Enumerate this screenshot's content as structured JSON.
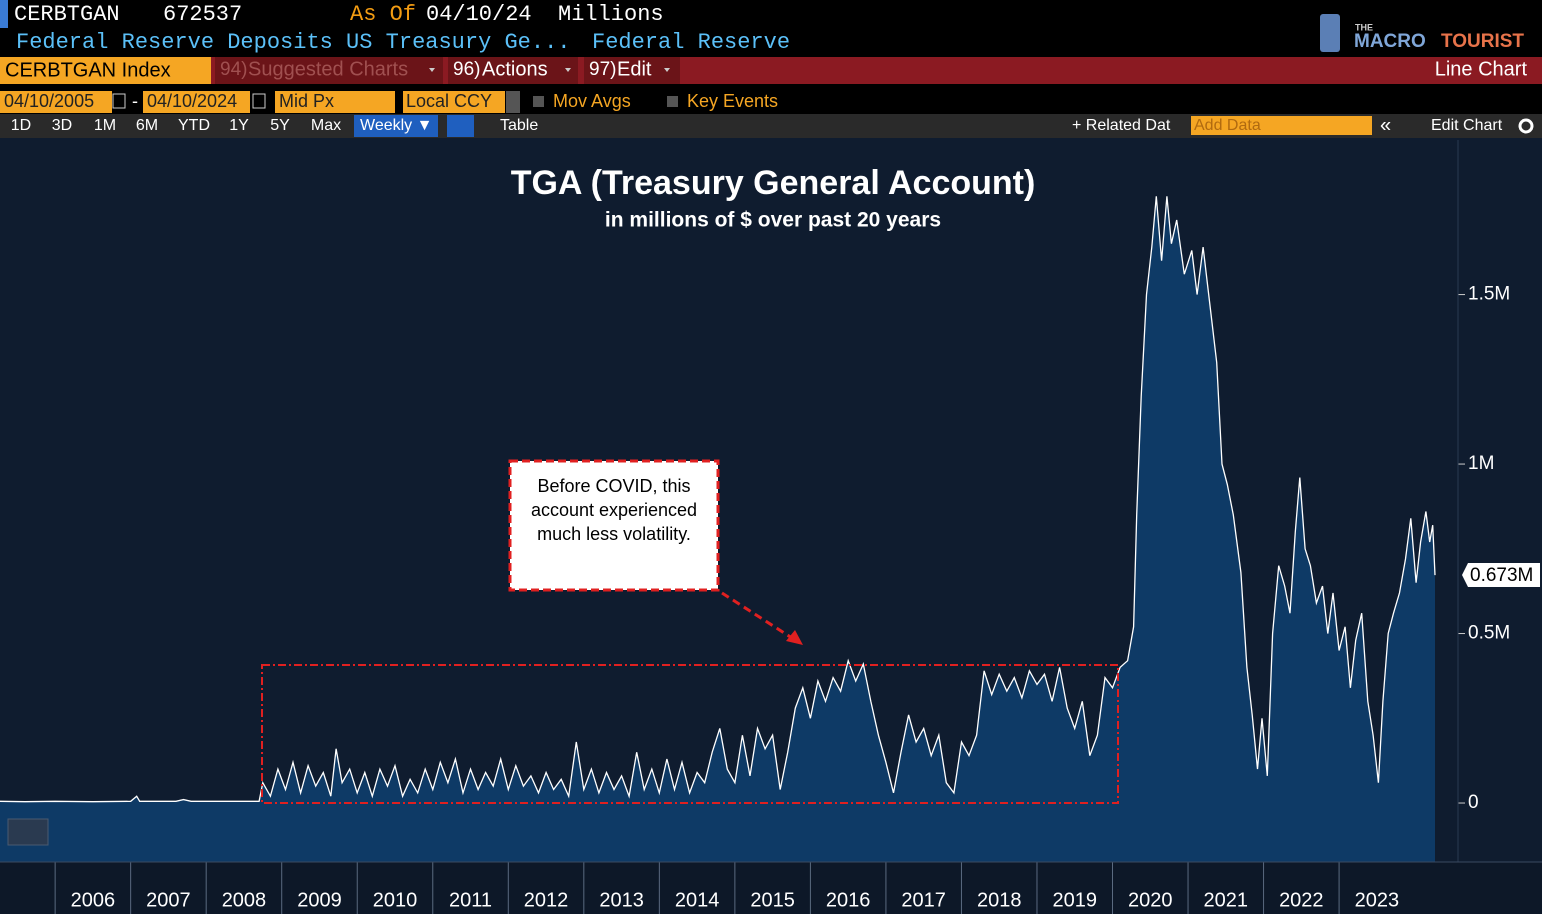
{
  "header": {
    "ticker": "CERBTGAN",
    "value": 672537,
    "as_of_label": "As Of",
    "as_of_date": "04/10/24",
    "units": "Millions",
    "description": "Federal Reserve Deposits US Treasury Ge...",
    "source": "Federal Reserve"
  },
  "logo": {
    "small": "THE",
    "brand1": "MACRO",
    "brand2": "TOURIST"
  },
  "toolbar": {
    "security": "CERBTGAN Index",
    "menu": [
      {
        "num": "94)",
        "label": "Suggested Charts"
      },
      {
        "num": "96)",
        "label": "Actions"
      },
      {
        "num": "97)",
        "label": "Edit"
      }
    ],
    "chart_type": "Line Chart"
  },
  "params": {
    "start": "04/10/2005",
    "dash": "-",
    "end": "04/10/2024",
    "field": "Mid Px",
    "currency": "Local CCY",
    "mov_avgs": "Mov Avgs",
    "key_events": "Key Events"
  },
  "periods": [
    "1D",
    "3D",
    "1M",
    "6M",
    "YTD",
    "1Y",
    "5Y",
    "Max"
  ],
  "frequency": "Weekly ▼",
  "table": "Table",
  "related": "+ Related Dat",
  "add_data": "Add Data",
  "back": "«",
  "edit_chart": "Edit Chart",
  "chart_data": {
    "type": "area",
    "title": "TGA (Treasury General Account)",
    "subtitle": "in millions of $ over past 20 years",
    "annotation": "Before COVID, this account experienced much less volatility.",
    "color": "#0e3a66",
    "line_color": "#ffffff",
    "xlim": [
      2005.27,
      2024.27
    ],
    "xticks": [
      2006,
      2007,
      2008,
      2009,
      2010,
      2011,
      2012,
      2013,
      2014,
      2015,
      2016,
      2017,
      2018,
      2019,
      2020,
      2021,
      2022,
      2023
    ],
    "ylim": [
      -174000,
      1956000
    ],
    "yticks": [
      0,
      {
        "value": 500000,
        "label": "0.5M"
      },
      {
        "value": 1000000,
        "label": "1M"
      },
      {
        "value": 1500000,
        "label": "1.5M"
      }
    ],
    "grid": false,
    "last_value": {
      "value": 672537,
      "label": "0.673M"
    },
    "x": [
      2005.27,
      2005.6,
      2006.0,
      2006.5,
      2007.0,
      2007.08,
      2007.12,
      2007.6,
      2007.7,
      2007.8,
      2008.2,
      2008.7,
      2008.75,
      2008.85,
      2008.95,
      2009.05,
      2009.15,
      2009.25,
      2009.35,
      2009.45,
      2009.55,
      2009.65,
      2009.72,
      2009.8,
      2009.9,
      2010.0,
      2010.1,
      2010.2,
      2010.3,
      2010.4,
      2010.5,
      2010.6,
      2010.7,
      2010.8,
      2010.9,
      2011.0,
      2011.1,
      2011.2,
      2011.3,
      2011.4,
      2011.5,
      2011.6,
      2011.7,
      2011.8,
      2011.9,
      2012.0,
      2012.1,
      2012.2,
      2012.3,
      2012.4,
      2012.5,
      2012.6,
      2012.7,
      2012.8,
      2012.9,
      2013.0,
      2013.1,
      2013.2,
      2013.3,
      2013.4,
      2013.5,
      2013.6,
      2013.7,
      2013.8,
      2013.9,
      2014.0,
      2014.1,
      2014.2,
      2014.3,
      2014.4,
      2014.5,
      2014.6,
      2014.7,
      2014.8,
      2014.9,
      2015.0,
      2015.1,
      2015.2,
      2015.3,
      2015.4,
      2015.5,
      2015.6,
      2015.7,
      2015.8,
      2015.9,
      2016.0,
      2016.1,
      2016.2,
      2016.3,
      2016.4,
      2016.5,
      2016.6,
      2016.7,
      2016.8,
      2016.9,
      2017.0,
      2017.1,
      2017.2,
      2017.3,
      2017.4,
      2017.5,
      2017.6,
      2017.7,
      2017.8,
      2017.9,
      2018.0,
      2018.1,
      2018.2,
      2018.3,
      2018.4,
      2018.5,
      2018.6,
      2018.7,
      2018.8,
      2018.9,
      2019.0,
      2019.1,
      2019.2,
      2019.3,
      2019.4,
      2019.5,
      2019.6,
      2019.7,
      2019.8,
      2019.9,
      2020.0,
      2020.1,
      2020.2,
      2020.28,
      2020.32,
      2020.38,
      2020.45,
      2020.52,
      2020.58,
      2020.65,
      2020.72,
      2020.78,
      2020.85,
      2020.95,
      2021.05,
      2021.12,
      2021.2,
      2021.3,
      2021.38,
      2021.45,
      2021.52,
      2021.6,
      2021.7,
      2021.78,
      2021.85,
      2021.92,
      2021.98,
      2022.05,
      2022.12,
      2022.2,
      2022.28,
      2022.35,
      2022.42,
      2022.48,
      2022.55,
      2022.62,
      2022.7,
      2022.78,
      2022.85,
      2022.92,
      2023.0,
      2023.08,
      2023.15,
      2023.22,
      2023.3,
      2023.38,
      2023.45,
      2023.52,
      2023.58,
      2023.65,
      2023.72,
      2023.8,
      2023.88,
      2023.95,
      2024.02,
      2024.08,
      2024.15,
      2024.2,
      2024.24,
      2024.27
    ],
    "values": [
      5000,
      4000,
      5000,
      4000,
      5000,
      20000,
      5000,
      5000,
      10000,
      5000,
      5000,
      5000,
      60000,
      20000,
      100000,
      40000,
      120000,
      30000,
      110000,
      50000,
      90000,
      20000,
      160000,
      60000,
      100000,
      30000,
      90000,
      20000,
      100000,
      50000,
      110000,
      20000,
      70000,
      30000,
      100000,
      40000,
      120000,
      60000,
      130000,
      30000,
      100000,
      40000,
      90000,
      50000,
      130000,
      40000,
      110000,
      50000,
      80000,
      30000,
      90000,
      40000,
      70000,
      20000,
      180000,
      40000,
      100000,
      30000,
      90000,
      40000,
      80000,
      20000,
      150000,
      40000,
      100000,
      30000,
      130000,
      40000,
      120000,
      30000,
      90000,
      60000,
      150000,
      220000,
      100000,
      60000,
      200000,
      80000,
      220000,
      160000,
      200000,
      40000,
      150000,
      280000,
      340000,
      250000,
      360000,
      300000,
      370000,
      330000,
      420000,
      360000,
      410000,
      300000,
      200000,
      120000,
      30000,
      150000,
      260000,
      180000,
      220000,
      140000,
      200000,
      60000,
      30000,
      180000,
      140000,
      200000,
      390000,
      320000,
      380000,
      330000,
      370000,
      310000,
      390000,
      350000,
      380000,
      300000,
      400000,
      280000,
      220000,
      300000,
      140000,
      200000,
      370000,
      340000,
      400000,
      420000,
      520000,
      850000,
      1200000,
      1500000,
      1640000,
      1790000,
      1600000,
      1790000,
      1650000,
      1720000,
      1560000,
      1630000,
      1500000,
      1640000,
      1450000,
      1300000,
      1000000,
      940000,
      850000,
      680000,
      400000,
      260000,
      100000,
      250000,
      80000,
      500000,
      700000,
      640000,
      560000,
      800000,
      960000,
      750000,
      700000,
      590000,
      640000,
      500000,
      620000,
      450000,
      520000,
      340000,
      480000,
      560000,
      300000,
      200000,
      60000,
      300000,
      500000,
      560000,
      620000,
      720000,
      840000,
      650000,
      770000,
      860000,
      770000,
      820000,
      672537
    ]
  }
}
